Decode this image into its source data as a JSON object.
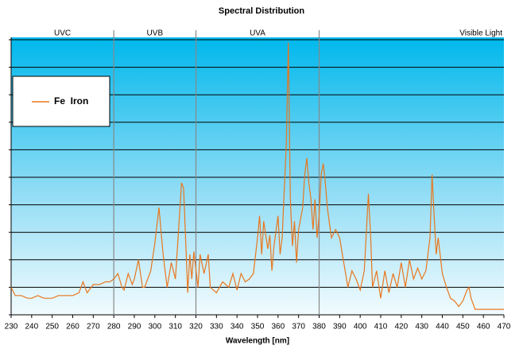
{
  "chart_data": {
    "type": "line",
    "title": "Spectral Distribution",
    "x_label": "Wavelength [nm]",
    "xlim": [
      230,
      470
    ],
    "xticks": [
      230,
      240,
      250,
      260,
      270,
      280,
      290,
      300,
      310,
      320,
      330,
      340,
      350,
      360,
      370,
      380,
      390,
      400,
      410,
      420,
      430,
      440,
      450,
      460,
      470
    ],
    "ylim": [
      0,
      10
    ],
    "yticks": [
      0,
      1,
      2,
      3,
      4,
      5,
      6,
      7,
      8,
      9,
      10
    ],
    "grid": true,
    "region_lines": [
      280,
      320,
      380
    ],
    "region_labels": [
      "UVC",
      "UVB",
      "UVA",
      "Visible Light"
    ],
    "legend": "upper left",
    "x": [
      230,
      232,
      235,
      238,
      240,
      243,
      246,
      250,
      253,
      256,
      260,
      263,
      265,
      267,
      270,
      273,
      276,
      278,
      280,
      282,
      284,
      285,
      287,
      289,
      290,
      292,
      294,
      295,
      298,
      300,
      302,
      304,
      306,
      308,
      310,
      312,
      313,
      314,
      316,
      317,
      318,
      319,
      321,
      322,
      324,
      326,
      327,
      330,
      333,
      336,
      338,
      340,
      342,
      344,
      346,
      348,
      350,
      351,
      352,
      353,
      355,
      356,
      357,
      358,
      360,
      361,
      362,
      364,
      365,
      366,
      367,
      368,
      369,
      370,
      372,
      373,
      374,
      375,
      376,
      377,
      378,
      379,
      380,
      381,
      382,
      383,
      384,
      386,
      388,
      390,
      392,
      394,
      396,
      398,
      400,
      402,
      403,
      404,
      405,
      406,
      408,
      410,
      412,
      414,
      416,
      418,
      420,
      422,
      424,
      426,
      428,
      430,
      432,
      434,
      435,
      436,
      437,
      438,
      440,
      442,
      444,
      446,
      448,
      450,
      452,
      453,
      454,
      456,
      460,
      465,
      470
    ],
    "series": [
      {
        "name": "Fe  Iron",
        "color": "#e8771e",
        "values": [
          1.0,
          0.7,
          0.7,
          0.6,
          0.6,
          0.7,
          0.6,
          0.6,
          0.7,
          0.7,
          0.7,
          0.8,
          1.2,
          0.8,
          1.1,
          1.1,
          1.2,
          1.2,
          1.3,
          1.5,
          1.0,
          0.9,
          1.5,
          1.1,
          1.3,
          2.0,
          1.0,
          1.0,
          1.6,
          2.6,
          3.9,
          2.2,
          1.0,
          1.9,
          1.3,
          3.6,
          4.8,
          4.6,
          0.8,
          2.2,
          1.3,
          2.3,
          1.0,
          2.2,
          1.5,
          2.2,
          1.0,
          0.8,
          1.2,
          1.0,
          1.5,
          0.9,
          1.5,
          1.2,
          1.3,
          1.5,
          2.8,
          3.6,
          2.2,
          3.4,
          2.4,
          2.9,
          1.6,
          2.5,
          3.6,
          2.2,
          2.8,
          6.2,
          9.9,
          4.2,
          2.5,
          3.4,
          1.9,
          3.1,
          3.9,
          5.1,
          5.7,
          4.8,
          4.2,
          3.1,
          4.2,
          2.8,
          3.6,
          5.1,
          5.5,
          4.8,
          3.9,
          2.8,
          3.1,
          2.8,
          1.9,
          1.0,
          1.6,
          1.3,
          0.9,
          1.6,
          3.0,
          4.4,
          3.0,
          1.0,
          1.6,
          0.6,
          1.6,
          0.8,
          1.5,
          1.0,
          1.9,
          1.0,
          2.0,
          1.3,
          1.7,
          1.3,
          1.6,
          2.8,
          5.1,
          3.6,
          2.2,
          2.8,
          1.5,
          1.0,
          0.6,
          0.5,
          0.3,
          0.5,
          0.9,
          1.0,
          0.6,
          0.2,
          0.2,
          0.2,
          0.2
        ]
      }
    ]
  }
}
